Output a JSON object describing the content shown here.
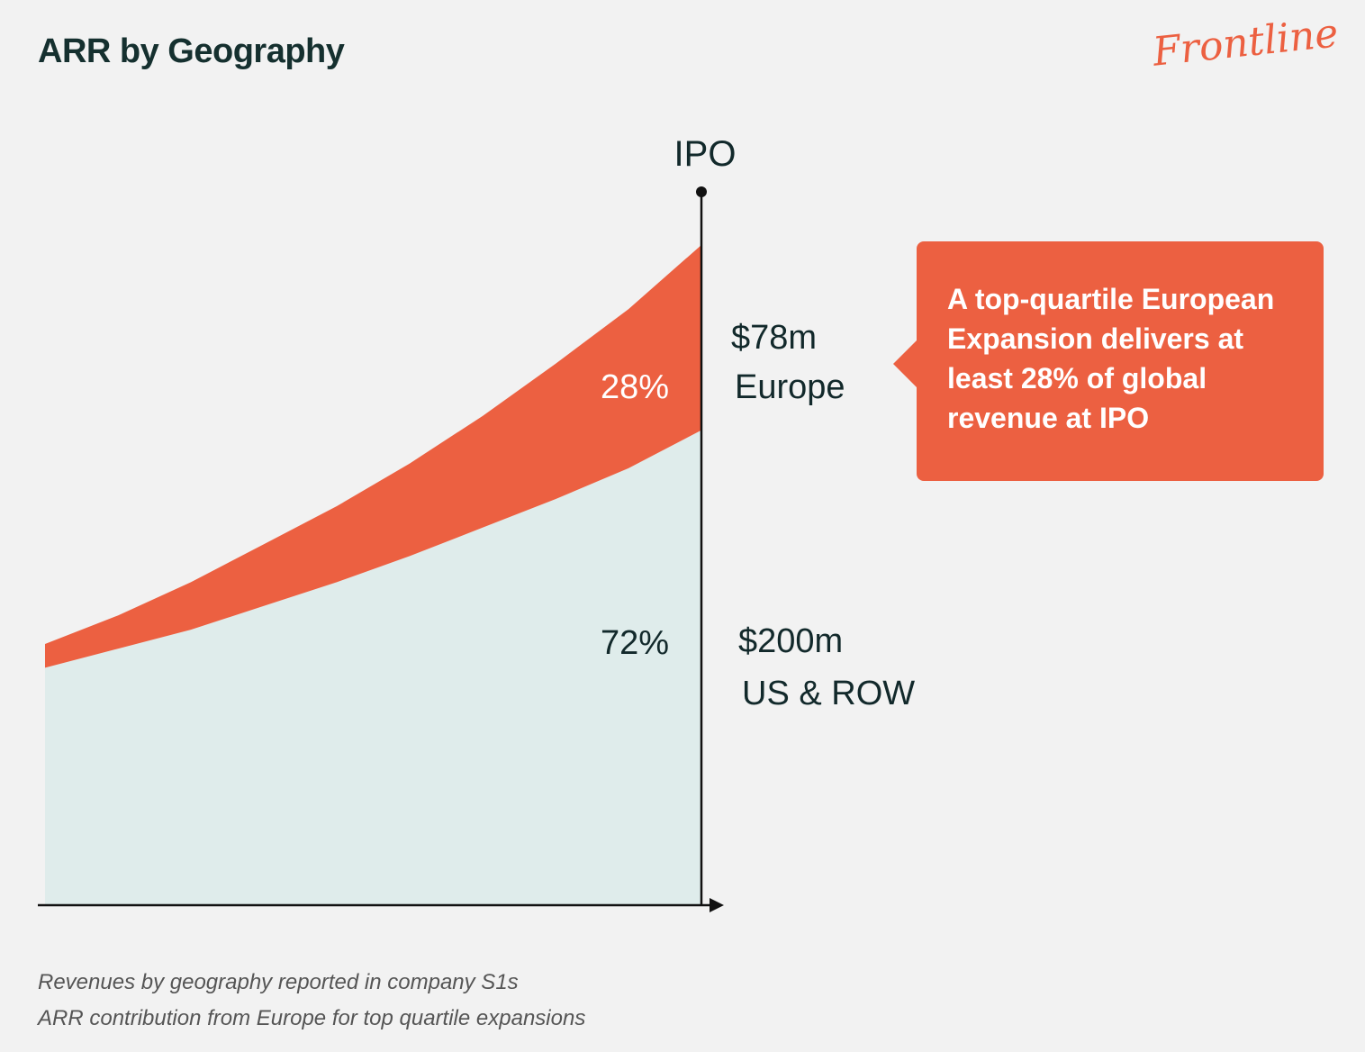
{
  "header": {
    "title": "ARR by Geography",
    "logo": "Frontline"
  },
  "callout": {
    "text": "A top-quartile European Expansion delivers at least 28% of global revenue at IPO"
  },
  "footnotes": [
    "Revenues by geography reported in company S1s",
    "ARR contribution from Europe for top quartile expansions"
  ],
  "colors": {
    "europe": "#ec6041",
    "us_row": "#dfeceb",
    "background": "#f2f2f2",
    "text": "#12292b"
  },
  "chart_data": {
    "type": "area",
    "stacked": true,
    "title": "ARR by Geography",
    "x": [
      1,
      2,
      3,
      4,
      5,
      6,
      7,
      8,
      9,
      10
    ],
    "series": [
      {
        "name": "US & ROW",
        "values": [
          100,
          108,
          116,
          126,
          136,
          147,
          159,
          171,
          184,
          200
        ],
        "share_label": "72%",
        "end_value_label": "$200m",
        "end_label": "US & ROW"
      },
      {
        "name": "Europe",
        "values": [
          10,
          14,
          20,
          26,
          32,
          39,
          47,
          57,
          67,
          78
        ],
        "share_label": "28%",
        "end_value_label": "$78m",
        "end_label": "Europe"
      }
    ],
    "marker": {
      "label": "IPO",
      "x": 10
    },
    "ylim": [
      0,
      278
    ],
    "grid": false,
    "xlabel": "",
    "ylabel": ""
  }
}
